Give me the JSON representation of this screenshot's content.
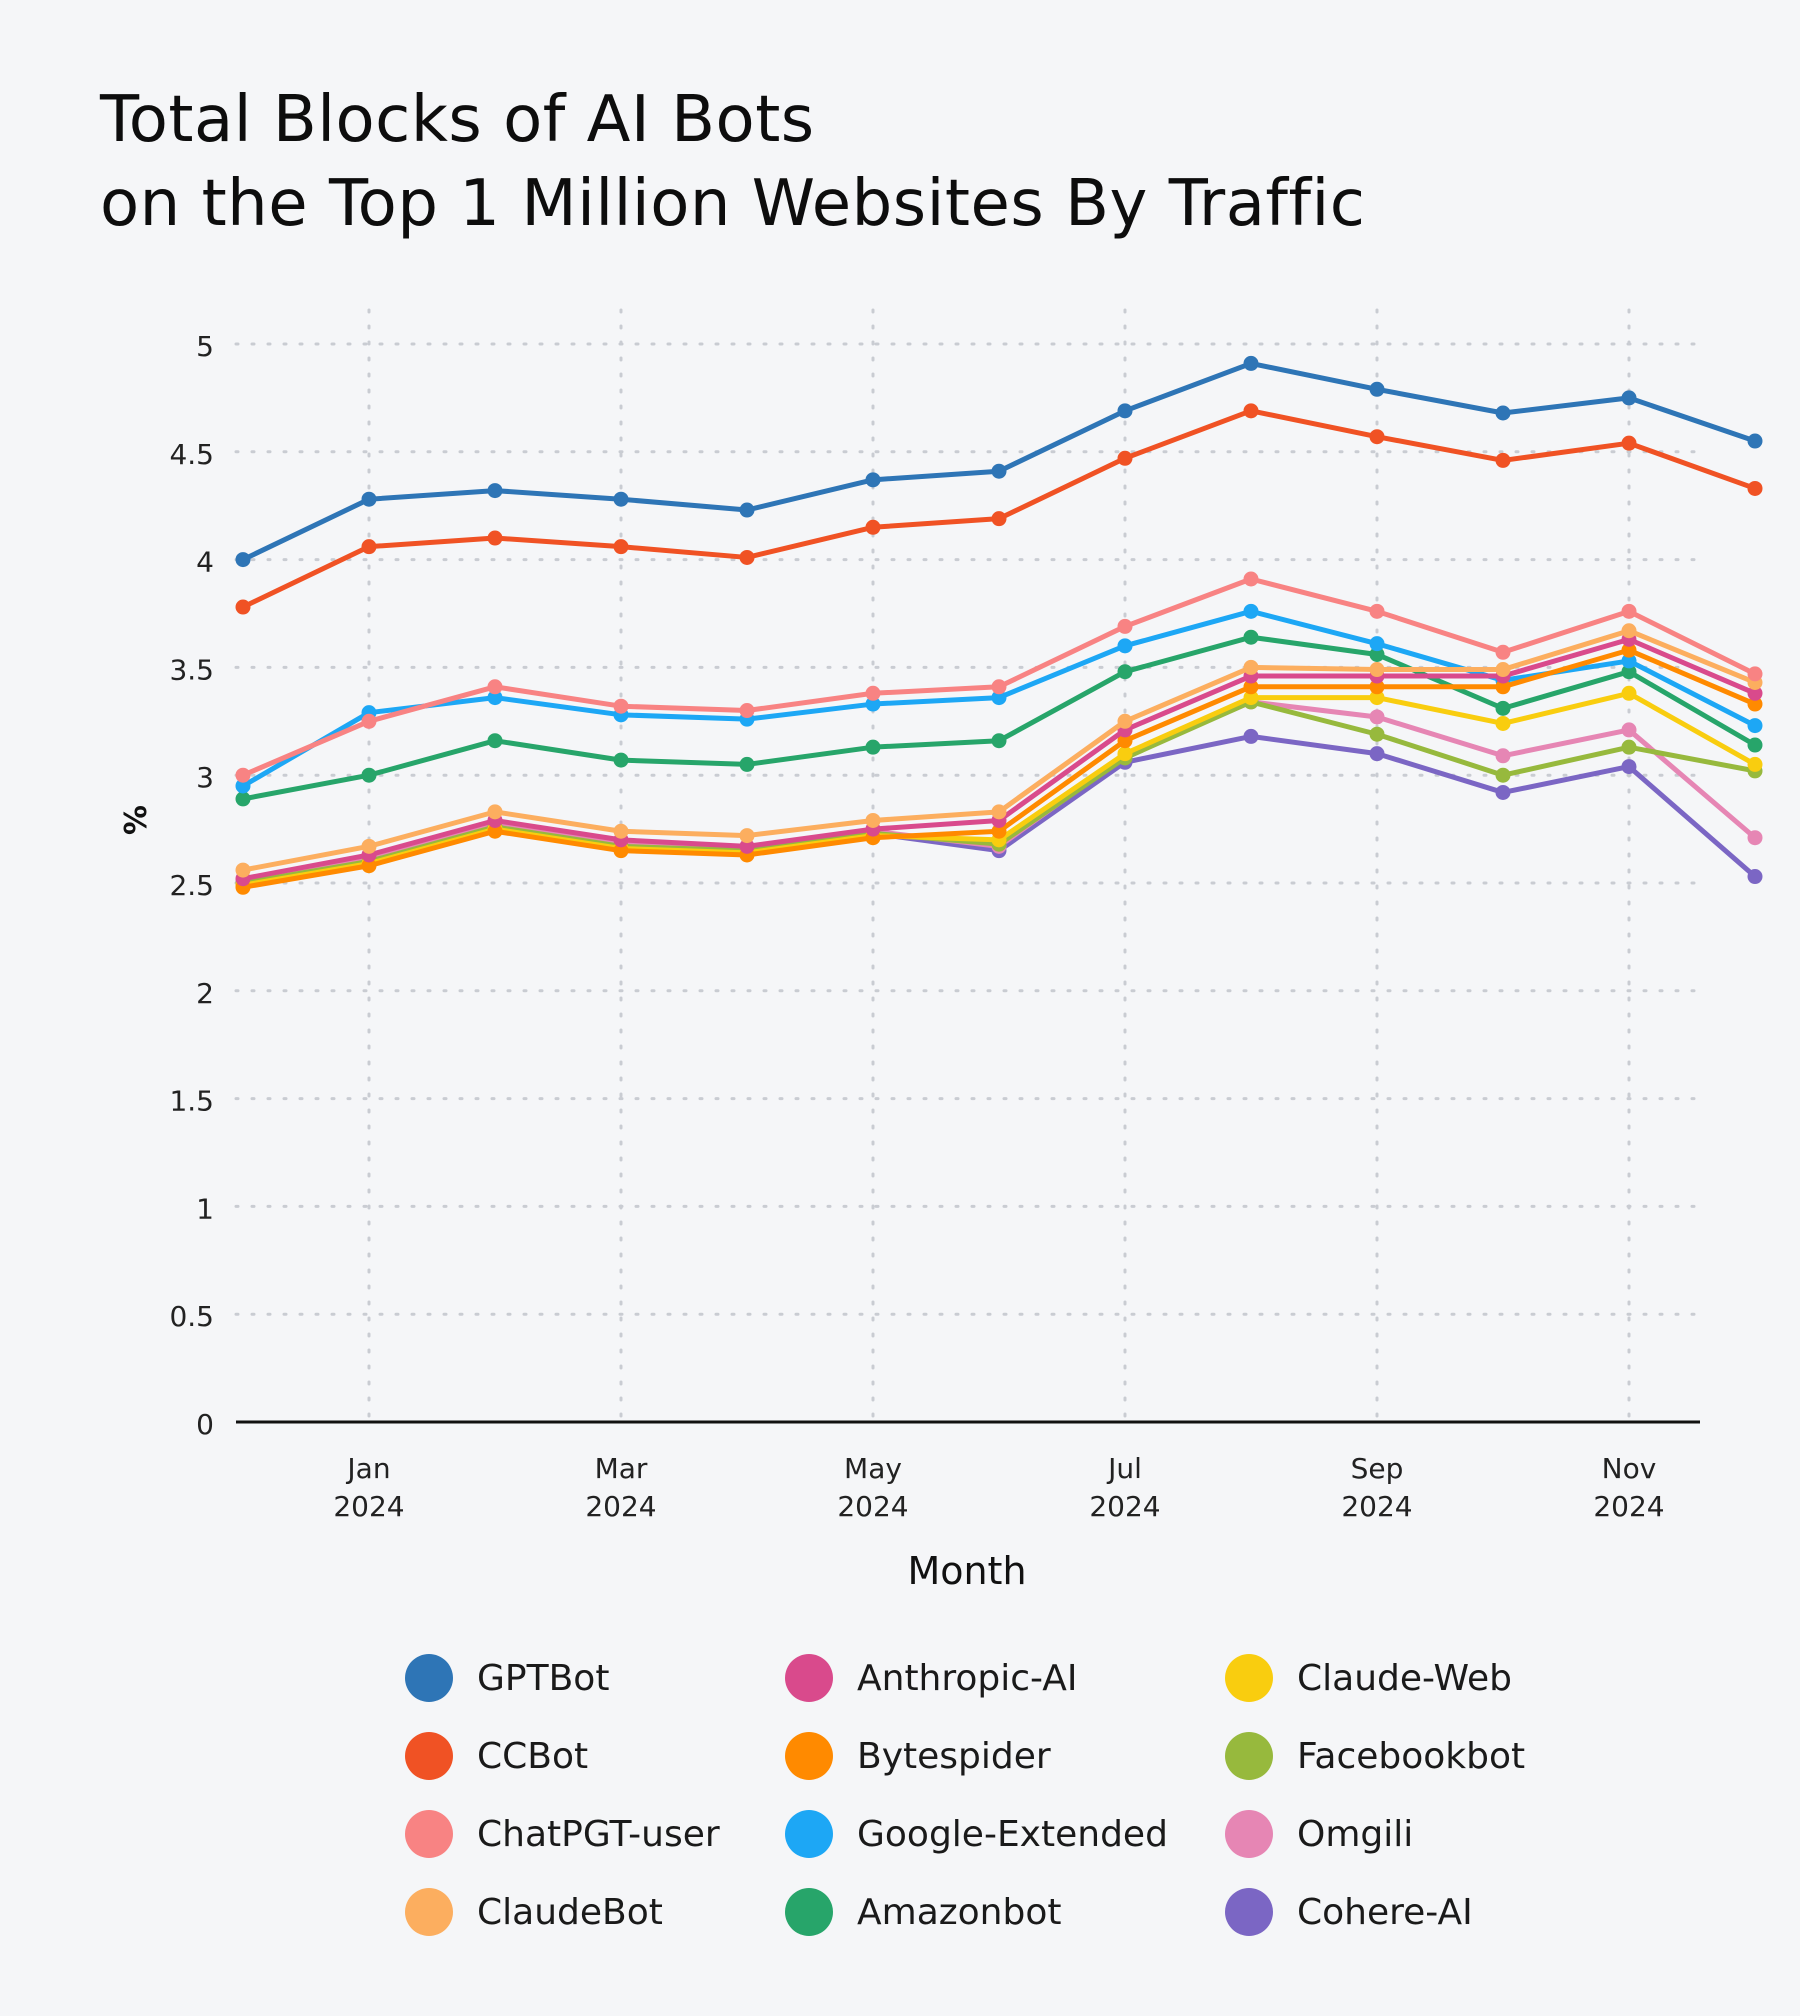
{
  "title": {
    "line1": "Total Blocks of AI Bots",
    "line2": "on the Top 1 Million Websites By Traffic"
  },
  "chart_data": {
    "type": "line",
    "xlabel": "Month",
    "ylabel": "%",
    "ylim": [
      0,
      5
    ],
    "yticks": [
      "0",
      "0.5",
      "1",
      "1.5",
      "2",
      "2.5",
      "3",
      "3.5",
      "4",
      "4.5",
      "5"
    ],
    "x": [
      "Dec 2023",
      "Jan 2024",
      "Feb 2024",
      "Mar 2024",
      "Apr 2024",
      "May 2024",
      "Jun 2024",
      "Jul 2024",
      "Aug 2024",
      "Sep 2024",
      "Oct 2024",
      "Nov 2024",
      "Dec 2024"
    ],
    "xticks": [
      {
        "month": "Jan",
        "year": "2024"
      },
      {
        "month": "Mar",
        "year": "2024"
      },
      {
        "month": "May",
        "year": "2024"
      },
      {
        "month": "Jul",
        "year": "2024"
      },
      {
        "month": "Sep",
        "year": "2024"
      },
      {
        "month": "Nov",
        "year": "2024"
      }
    ],
    "grid": true,
    "legend_position": "bottom",
    "series": [
      {
        "name": "GPTBot",
        "color": "#2e75b6",
        "values": [
          4.0,
          4.28,
          4.32,
          4.28,
          4.23,
          4.37,
          4.41,
          4.69,
          4.91,
          4.79,
          4.68,
          4.75,
          4.55
        ]
      },
      {
        "name": "CCBot",
        "color": "#f05224",
        "values": [
          3.78,
          4.06,
          4.1,
          4.06,
          4.01,
          4.15,
          4.19,
          4.47,
          4.69,
          4.57,
          4.46,
          4.54,
          4.33
        ]
      },
      {
        "name": "ChatPGT-user",
        "color": "#f88383",
        "values": [
          3.0,
          3.25,
          3.41,
          3.32,
          3.3,
          3.38,
          3.41,
          3.69,
          3.91,
          3.76,
          3.57,
          3.76,
          3.47
        ]
      },
      {
        "name": "ClaudeBot",
        "color": "#fcae5f",
        "values": [
          2.56,
          2.67,
          2.83,
          2.74,
          2.72,
          2.79,
          2.83,
          3.25,
          3.5,
          3.49,
          3.49,
          3.67,
          3.43
        ]
      },
      {
        "name": "Anthropic-AI",
        "color": "#d94a8c",
        "values": [
          2.52,
          2.63,
          2.79,
          2.7,
          2.67,
          2.75,
          2.79,
          3.21,
          3.46,
          3.46,
          3.46,
          3.63,
          3.38
        ]
      },
      {
        "name": "Bytespider",
        "color": "#ff8a00",
        "values": [
          2.48,
          2.58,
          2.74,
          2.65,
          2.63,
          2.71,
          2.74,
          3.16,
          3.41,
          3.41,
          3.41,
          3.58,
          3.33
        ]
      },
      {
        "name": "Google-Extended",
        "color": "#1da7f5",
        "values": [
          2.95,
          3.29,
          3.36,
          3.28,
          3.26,
          3.33,
          3.36,
          3.6,
          3.76,
          3.61,
          3.44,
          3.53,
          3.23
        ]
      },
      {
        "name": "Amazonbot",
        "color": "#27a56a",
        "values": [
          2.89,
          3.0,
          3.16,
          3.07,
          3.05,
          3.13,
          3.16,
          3.48,
          3.64,
          3.56,
          3.31,
          3.48,
          3.14
        ]
      },
      {
        "name": "Claude-Web",
        "color": "#f9cd0f",
        "values": [
          2.49,
          2.59,
          2.75,
          2.66,
          2.64,
          2.72,
          2.7,
          3.1,
          3.36,
          3.36,
          3.24,
          3.38,
          3.05
        ]
      },
      {
        "name": "Facebookbot",
        "color": "#97b93d",
        "values": [
          2.5,
          2.6,
          2.76,
          2.67,
          2.65,
          2.73,
          2.68,
          3.08,
          3.34,
          3.19,
          3.0,
          3.13,
          3.02
        ]
      },
      {
        "name": "Omgili",
        "color": "#e686b4",
        "values": [
          2.51,
          2.61,
          2.77,
          2.68,
          2.66,
          2.74,
          2.67,
          3.09,
          3.34,
          3.27,
          3.09,
          3.21,
          2.71
        ]
      },
      {
        "name": "Cohere-AI",
        "color": "#7b66c4",
        "values": [
          2.5,
          2.6,
          2.76,
          2.67,
          2.65,
          2.73,
          2.65,
          3.06,
          3.18,
          3.1,
          2.92,
          3.04,
          2.53
        ]
      }
    ]
  },
  "legend": {
    "items": [
      {
        "label": "GPTBot",
        "color": "#2e75b6"
      },
      {
        "label": "CCBot",
        "color": "#f05224"
      },
      {
        "label": "ChatPGT-user",
        "color": "#f88383"
      },
      {
        "label": "ClaudeBot",
        "color": "#fcae5f"
      },
      {
        "label": "Anthropic-AI",
        "color": "#d94a8c"
      },
      {
        "label": "Bytespider",
        "color": "#ff8a00"
      },
      {
        "label": "Google-Extended",
        "color": "#1da7f5"
      },
      {
        "label": "Amazonbot",
        "color": "#27a56a"
      },
      {
        "label": "Claude-Web",
        "color": "#f9cd0f"
      },
      {
        "label": "Facebookbot",
        "color": "#97b93d"
      },
      {
        "label": "Omgili",
        "color": "#e686b4"
      },
      {
        "label": "Cohere-AI",
        "color": "#7b66c4"
      }
    ]
  }
}
